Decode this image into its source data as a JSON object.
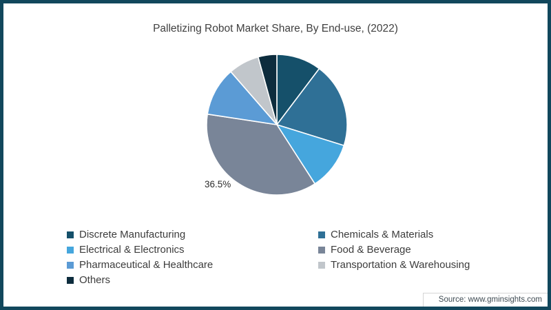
{
  "title": "Palletizing Robot Market Share, By End-use, (2022)",
  "source": "Source: www.gminsights.com",
  "frame_color": "#11475C",
  "chart_data": {
    "type": "pie",
    "title": "Palletizing Robot Market Share, By End-use, (2022)",
    "direction": "clockwise",
    "start_angle_deg": 0,
    "legend_position": "bottom",
    "legend_columns": 2,
    "series": [
      {
        "label": "Discrete Manufacturing",
        "value": 10.3,
        "color": "#15506A"
      },
      {
        "label": "Chemicals & Materials",
        "value": 19.5,
        "color": "#2F7096"
      },
      {
        "label": "Electrical & Electronics",
        "value": 11.1,
        "color": "#45A6DD"
      },
      {
        "label": "Food & Beverage",
        "value": 36.5,
        "color": "#798598"
      },
      {
        "label": "Pharmaceutical & Healthcare",
        "value": 11.2,
        "color": "#5B9BD5"
      },
      {
        "label": "Transportation & Warehousing",
        "value": 7.1,
        "color": "#C1C6CB"
      },
      {
        "label": "Others",
        "value": 4.3,
        "color": "#0D2C3D"
      }
    ],
    "data_label": {
      "text": "36.5%",
      "slice": "Food & Beverage",
      "position": "outside-lower-left"
    }
  }
}
